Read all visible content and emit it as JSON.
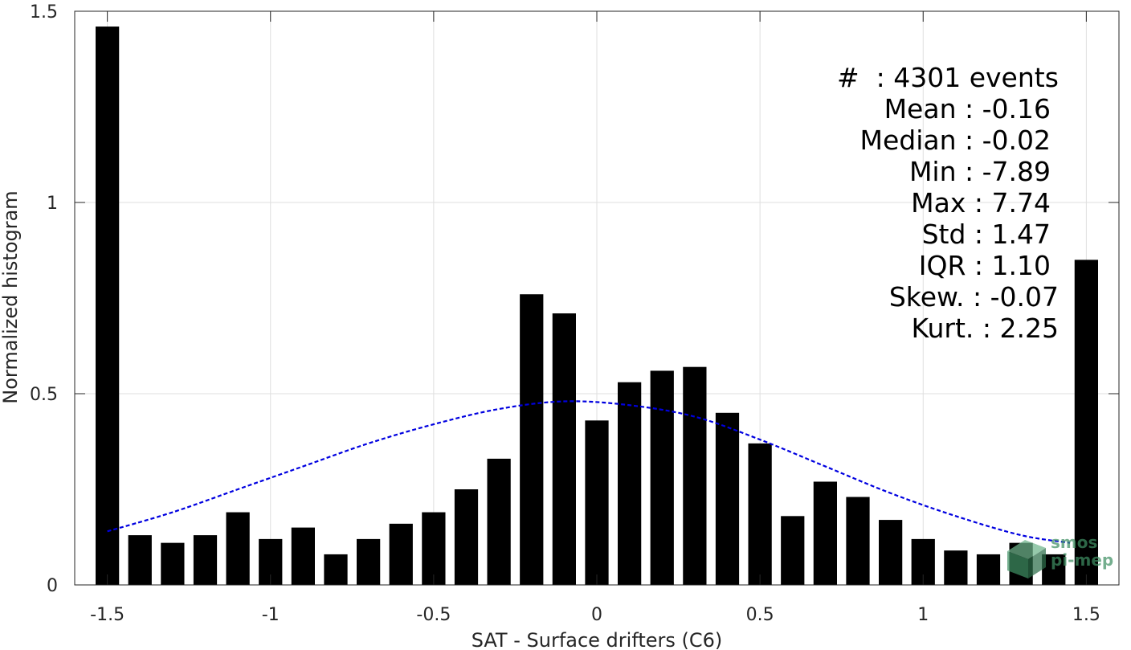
{
  "chart_data": {
    "type": "bar",
    "xlabel": "SAT - Surface drifters (C6)",
    "ylabel": "Normalized histogram",
    "xlim": [
      -1.6,
      1.6
    ],
    "ylim": [
      0,
      1.5
    ],
    "xticks": [
      "-1.5",
      "-1",
      "-0.5",
      "0",
      "0.5",
      "1",
      "1.5"
    ],
    "yticks": [
      "0",
      "0.5",
      "1",
      "1.5"
    ],
    "grid": true,
    "bin_centers": [
      -1.5,
      -1.4,
      -1.3,
      -1.2,
      -1.1,
      -1.0,
      -0.9,
      -0.8,
      -0.7,
      -0.6,
      -0.5,
      -0.4,
      -0.3,
      -0.2,
      -0.1,
      0.0,
      0.1,
      0.2,
      0.3,
      0.4,
      0.5,
      0.6,
      0.7,
      0.8,
      0.9,
      1.0,
      1.1,
      1.2,
      1.3,
      1.4,
      1.5
    ],
    "values": [
      1.46,
      0.13,
      0.11,
      0.13,
      0.19,
      0.12,
      0.15,
      0.08,
      0.12,
      0.16,
      0.19,
      0.25,
      0.33,
      0.76,
      0.71,
      0.43,
      0.53,
      0.56,
      0.57,
      0.45,
      0.37,
      0.18,
      0.27,
      0.23,
      0.17,
      0.12,
      0.09,
      0.08,
      0.11,
      0.08,
      0.85
    ],
    "fit": {
      "style": "blue dashed normal curve",
      "color": "#0000e0",
      "x": [
        -1.5,
        -1.3,
        -1.1,
        -0.9,
        -0.7,
        -0.5,
        -0.3,
        -0.1,
        0.1,
        0.3,
        0.5,
        0.7,
        0.9,
        1.1,
        1.3,
        1.45
      ],
      "y": [
        0.14,
        0.19,
        0.25,
        0.31,
        0.37,
        0.42,
        0.46,
        0.48,
        0.47,
        0.44,
        0.38,
        0.31,
        0.24,
        0.18,
        0.13,
        0.11
      ]
    }
  },
  "stats": [
    {
      "label": "#",
      "value": ": 4301 events"
    },
    {
      "label": "Mean",
      "value": ": -0.16"
    },
    {
      "label": "Median",
      "value": ": -0.02"
    },
    {
      "label": "Min",
      "value": ": -7.89"
    },
    {
      "label": "Max",
      "value": ": 7.74"
    },
    {
      "label": "Std",
      "value": ": 1.47"
    },
    {
      "label": "IQR",
      "value": ": 1.10"
    },
    {
      "label": "Skew.",
      "value": ": -0.07"
    },
    {
      "label": "Kurt.",
      "value": ": 2.25"
    }
  ],
  "logo": {
    "line1": "smos",
    "line2": "pi-mep"
  }
}
